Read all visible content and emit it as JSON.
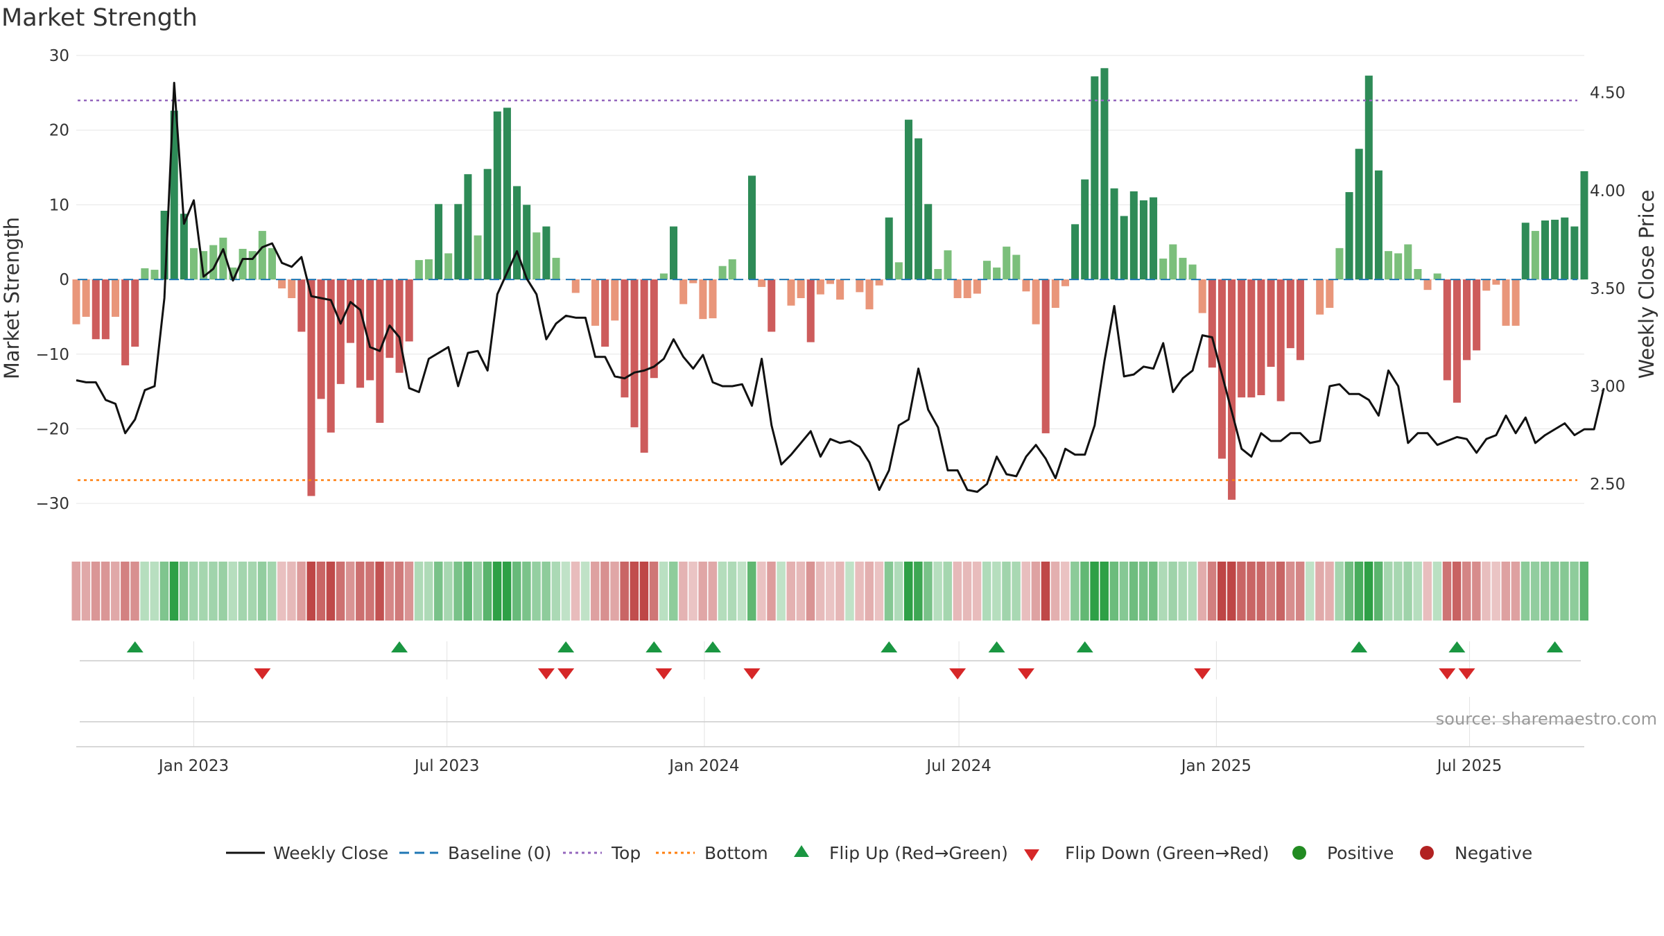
{
  "title": "Market Strength",
  "source": "source: sharemaestro.com",
  "colors": {
    "strong_green": "#2e8b57",
    "light_green": "#7bbf7b",
    "strong_red": "#cd5c5c",
    "light_red": "#e9967a",
    "close_line": "#111111",
    "baseline": "#1f77b4",
    "top": "#9467bd",
    "bottom": "#ff7f0e",
    "flip_up": "#1a9641",
    "flip_down": "#d62728",
    "positive": "#228b22",
    "negative": "#b22222",
    "grid": "#e6e6e6"
  },
  "chart_data": {
    "type": "bar",
    "title": "Market Strength",
    "ylabel": "Market Strength",
    "y2label": "Weekly Close Price",
    "ylim": [
      -35,
      30
    ],
    "y2lim": [
      2.21,
      4.69
    ],
    "yticks": [
      30,
      20,
      10,
      0,
      -10,
      -20,
      -30
    ],
    "yticklabels": [
      "30",
      "20",
      "10",
      "0",
      "−10",
      "−20",
      "−30"
    ],
    "y2ticks": [
      4.5,
      4.0,
      3.5,
      3.0,
      2.5
    ],
    "y2ticklabels": [
      "4.50",
      "4.00",
      "3.50",
      "3.00",
      "2.50"
    ],
    "xlim": [
      "2022-10-09",
      "2025-09-21"
    ],
    "xticks": [
      {
        "date": "2023-01-01",
        "label": "Jan 2023"
      },
      {
        "date": "2023-07-01",
        "label": "Jul 2023"
      },
      {
        "date": "2024-01-01",
        "label": "Jan 2024"
      },
      {
        "date": "2024-07-01",
        "label": "Jul 2024"
      },
      {
        "date": "2025-01-01",
        "label": "Jan 2025"
      },
      {
        "date": "2025-07-01",
        "label": "Jul 2025"
      }
    ],
    "start_date": "2022-10-09",
    "week_step_days": 7,
    "strength": [
      -6,
      -5,
      -8,
      -8,
      -5,
      -11.5,
      -9,
      1.5,
      1.3,
      9.2,
      22.6,
      8.8,
      4.2,
      3.8,
      4.6,
      5.6,
      1.6,
      4.1,
      3.8,
      6.5,
      4.2,
      -1.2,
      -2.5,
      -7,
      -29,
      -16,
      -20.5,
      -14,
      -8.5,
      -14.5,
      -13.5,
      -19.2,
      -10.5,
      -12.5,
      -8.3,
      2.6,
      2.7,
      10.1,
      3.5,
      10.1,
      14.1,
      5.9,
      14.8,
      22.5,
      23,
      12.5,
      10,
      6.3,
      7.1,
      2.9,
      0,
      -1.8,
      0,
      -6.2,
      -9,
      -5.5,
      -15.8,
      -19.8,
      -23.2,
      -13.2,
      0.8,
      7.1,
      -3.3,
      -0.5,
      -5.3,
      -5.2,
      1.8,
      2.7,
      0,
      13.9,
      -1,
      -7,
      0,
      -3.5,
      -2.5,
      -8.4,
      -2,
      -0.6,
      -2.7,
      0,
      -1.7,
      -4,
      -0.8,
      8.3,
      2.3,
      21.4,
      18.9,
      10.1,
      1.4,
      3.9,
      -2.5,
      -2.5,
      -1.9,
      2.5,
      1.6,
      4.4,
      3.3,
      -1.6,
      -6,
      -20.6,
      -3.8,
      -0.9,
      7.4,
      13.4,
      27.2,
      28.3,
      12.2,
      8.5,
      11.8,
      10.6,
      11,
      2.8,
      4.7,
      2.9,
      2,
      -4.5,
      -11.8,
      -24,
      -29.5,
      -15.8,
      -15.8,
      -15.5,
      -11.7,
      -16.3,
      -9.2,
      -10.8,
      0,
      -4.7,
      -3.8,
      4.2,
      11.7,
      17.5,
      27.3,
      14.6,
      3.8,
      3.5,
      4.7,
      1.4,
      -1.4,
      0.8,
      -13.5,
      -16.5,
      -10.8,
      -9.5,
      -1.5,
      -0.7,
      -6.2,
      -6.2,
      7.6,
      6.5,
      7.9,
      8,
      8.3,
      7.1,
      14.5
    ],
    "weekly_close": [
      3.03,
      3.02,
      3.02,
      2.93,
      2.91,
      2.76,
      2.83,
      2.98,
      3.0,
      3.45,
      4.55,
      3.83,
      3.95,
      3.56,
      3.6,
      3.7,
      3.54,
      3.65,
      3.65,
      3.71,
      3.73,
      3.63,
      3.61,
      3.66,
      3.46,
      3.45,
      3.44,
      3.32,
      3.43,
      3.39,
      3.2,
      3.18,
      3.31,
      3.25,
      2.99,
      2.97,
      3.14,
      3.17,
      3.2,
      3.0,
      3.17,
      3.18,
      3.08,
      3.47,
      3.58,
      3.69,
      3.55,
      3.47,
      3.24,
      3.32,
      3.36,
      3.35,
      3.35,
      3.15,
      3.15,
      3.05,
      3.04,
      3.07,
      3.08,
      3.1,
      3.14,
      3.24,
      3.15,
      3.09,
      3.16,
      3.02,
      3.0,
      3.0,
      3.01,
      2.9,
      3.14,
      2.8,
      2.6,
      2.65,
      2.71,
      2.77,
      2.64,
      2.73,
      2.71,
      2.72,
      2.69,
      2.61,
      2.47,
      2.57,
      2.8,
      2.83,
      3.09,
      2.88,
      2.79,
      2.57,
      2.57,
      2.47,
      2.46,
      2.5,
      2.64,
      2.55,
      2.54,
      2.64,
      2.7,
      2.63,
      2.53,
      2.68,
      2.65,
      2.65,
      2.8,
      3.13,
      3.41,
      3.05,
      3.06,
      3.1,
      3.09,
      3.22,
      2.97,
      3.04,
      3.08,
      3.26,
      3.25,
      3.06,
      2.87,
      2.68,
      2.64,
      2.76,
      2.72,
      2.72,
      2.76,
      2.76,
      2.71,
      2.72,
      3.0,
      3.01,
      2.96,
      2.96,
      2.93,
      2.85,
      3.08,
      3.0,
      2.71,
      2.76,
      2.76,
      2.7,
      2.72,
      2.74,
      2.73,
      2.66,
      2.73,
      2.75,
      2.85,
      2.76,
      2.84,
      2.71,
      2.75,
      2.78,
      2.81,
      2.75,
      2.78,
      2.78,
      2.99
    ],
    "heat_strip": "weekly strength shading row",
    "flip_up_dates": [
      "2022-11-20",
      "2023-05-28",
      "2023-09-24",
      "2023-11-26",
      "2024-01-07",
      "2024-05-12",
      "2024-07-28",
      "2024-09-29",
      "2025-04-13",
      "2025-06-22",
      "2025-08-31"
    ],
    "flip_down_dates": [
      "2023-02-19",
      "2023-09-10",
      "2023-09-24",
      "2023-12-03",
      "2024-02-04",
      "2024-06-30",
      "2024-08-18",
      "2024-12-22",
      "2025-06-15",
      "2025-06-29"
    ],
    "legend_position": "bottom-center",
    "grid": true
  },
  "legend": {
    "weekly_close": "Weekly Close",
    "baseline": "Baseline (0)",
    "top": "Top",
    "bottom": "Bottom",
    "flip_up": "Flip Up (Red→Green)",
    "flip_down": "Flip Down (Green→Red)",
    "positive": "Positive",
    "negative": "Negative"
  }
}
